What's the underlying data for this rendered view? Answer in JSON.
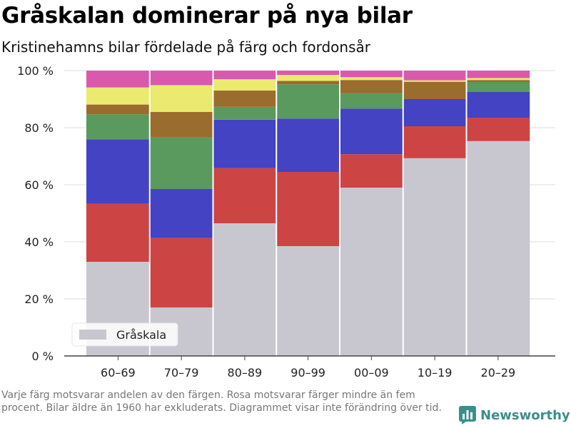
{
  "title": "Gråskalan dominerar på nya bilar",
  "subtitle": "Kristinehamns bilar fördelade på färg och fordonsår",
  "footnote": "Varje färg motsvarar andelen av den färgen. Rosa motsvarar färger mindre än fem procent. Bilar äldre än 1960 har exkluderats. Diagrammet visar inte förändring över tid.",
  "brand": {
    "name": "Newsworthy",
    "logo_icon": "bar-chart-logo-icon",
    "color": "#3a8f8a"
  },
  "chart_data": {
    "type": "bar",
    "stacked": true,
    "categories": [
      "60–69",
      "70–79",
      "80–89",
      "90–99",
      "00–09",
      "10–19",
      "20–29"
    ],
    "y_tick_labels": [
      "0 %",
      "20 %",
      "40 %",
      "60 %",
      "80 %",
      "100 %"
    ],
    "y_ticks": [
      0,
      20,
      40,
      60,
      80,
      100
    ],
    "ylim": [
      0,
      100
    ],
    "grid": true,
    "legend": {
      "position": "bottom-left",
      "entries": [
        "Gråskala"
      ]
    },
    "series": [
      {
        "name": "Gråskala",
        "color": "#c8c7d0",
        "values": [
          33,
          17,
          46.5,
          38.5,
          59,
          69.3,
          75.3
        ]
      },
      {
        "color": "#cc4444",
        "values": [
          20.3,
          24.3,
          19.3,
          26,
          11.7,
          11.2,
          8.2
        ]
      },
      {
        "color": "#4343c4",
        "values": [
          22.6,
          17.2,
          17,
          18.7,
          16,
          9.5,
          9
        ]
      },
      {
        "color": "#5a9a5e",
        "values": [
          8.8,
          18.1,
          4.5,
          12,
          5.4,
          0,
          3.5
        ]
      },
      {
        "color": "#9a6c2e",
        "values": [
          3.4,
          8.9,
          5.7,
          1.2,
          4.6,
          6.1,
          0.7
        ]
      },
      {
        "color": "#eaea6e",
        "values": [
          6,
          9.4,
          4,
          2.1,
          1,
          0.5,
          0.7
        ]
      },
      {
        "color": "#d95aad",
        "values": [
          5.9,
          5.1,
          3,
          1.5,
          2.3,
          3.4,
          2.6
        ]
      }
    ]
  }
}
